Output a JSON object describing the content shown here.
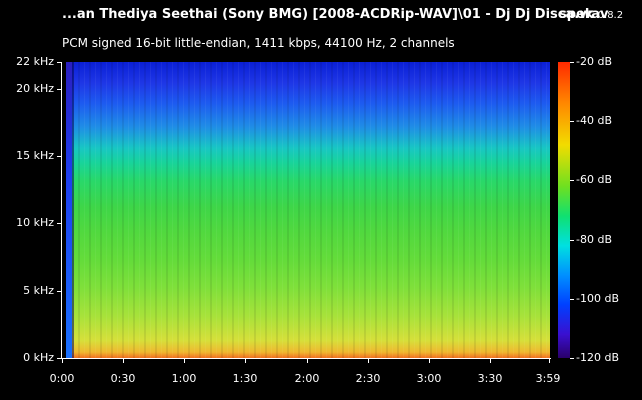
{
  "header": {
    "file_title": "...an Thediya Seethai (Sony BMG) [2008-ACDRip-WAV]\\01 - Dj Dj Disca.wav",
    "app_name": "spek",
    "app_version": "0.8.2",
    "stream_info": "PCM signed 16-bit little-endian, 1411 kbps, 44100 Hz, 2 channels"
  },
  "y_axis": {
    "ticks": [
      "22 kHz",
      "20 kHz",
      "15 kHz",
      "10 kHz",
      "5 kHz",
      "0 kHz"
    ]
  },
  "x_axis": {
    "ticks": [
      "0:00",
      "0:30",
      "1:00",
      "1:30",
      "2:00",
      "2:30",
      "3:00",
      "3:30",
      "3:59"
    ]
  },
  "colorbar": {
    "ticks": [
      "-20 dB",
      "-40 dB",
      "-60 dB",
      "-80 dB",
      "-100 dB",
      "-120 dB"
    ]
  }
}
